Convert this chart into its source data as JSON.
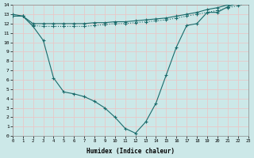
{
  "bg_color": "#cce8e8",
  "grid_color": "#e8c8c8",
  "line_color": "#1a6b6b",
  "xlabel": "Humidex (Indice chaleur)",
  "xmin": 0,
  "xmax": 23,
  "ymin": 0,
  "ymax": 14,
  "x_ticks": [
    0,
    1,
    2,
    3,
    4,
    5,
    6,
    7,
    8,
    9,
    10,
    11,
    12,
    13,
    14,
    15,
    16,
    17,
    18,
    19,
    20,
    21,
    22,
    23
  ],
  "y_ticks": [
    0,
    1,
    2,
    3,
    4,
    5,
    6,
    7,
    8,
    9,
    10,
    11,
    12,
    13,
    14
  ],
  "curve_x": [
    0,
    1,
    2,
    3,
    4,
    5,
    6,
    7,
    8,
    9,
    10,
    11,
    12,
    13,
    14,
    15,
    16,
    17,
    18,
    19,
    20,
    21,
    22,
    23
  ],
  "curve_y": [
    13.0,
    12.8,
    11.7,
    10.2,
    6.2,
    4.7,
    4.5,
    4.2,
    3.7,
    3.0,
    2.0,
    0.8,
    0.3,
    1.5,
    3.5,
    6.5,
    9.5,
    11.8,
    12.0,
    13.2,
    13.2,
    13.8,
    14.2,
    14.5
  ],
  "line1_x": [
    0,
    1,
    2,
    3,
    4,
    5,
    6,
    7,
    8,
    9,
    10,
    11,
    12,
    13,
    14,
    15,
    16,
    17,
    18,
    19,
    20,
    21,
    22,
    23
  ],
  "line1_y": [
    12.8,
    12.8,
    12.0,
    12.0,
    12.0,
    12.0,
    12.0,
    12.0,
    12.1,
    12.1,
    12.2,
    12.2,
    12.3,
    12.4,
    12.5,
    12.6,
    12.8,
    13.0,
    13.2,
    13.5,
    13.7,
    14.0,
    14.2,
    14.4
  ],
  "line2_x": [
    0,
    1,
    2,
    3,
    4,
    5,
    6,
    7,
    8,
    9,
    10,
    11,
    12,
    13,
    14,
    15,
    16,
    17,
    18,
    19,
    20,
    21,
    22,
    23
  ],
  "line2_y": [
    12.8,
    12.8,
    11.8,
    11.7,
    11.7,
    11.7,
    11.7,
    11.7,
    11.8,
    11.9,
    12.0,
    12.0,
    12.1,
    12.2,
    12.3,
    12.4,
    12.6,
    12.8,
    13.0,
    13.2,
    13.4,
    13.7,
    13.9,
    14.2
  ]
}
